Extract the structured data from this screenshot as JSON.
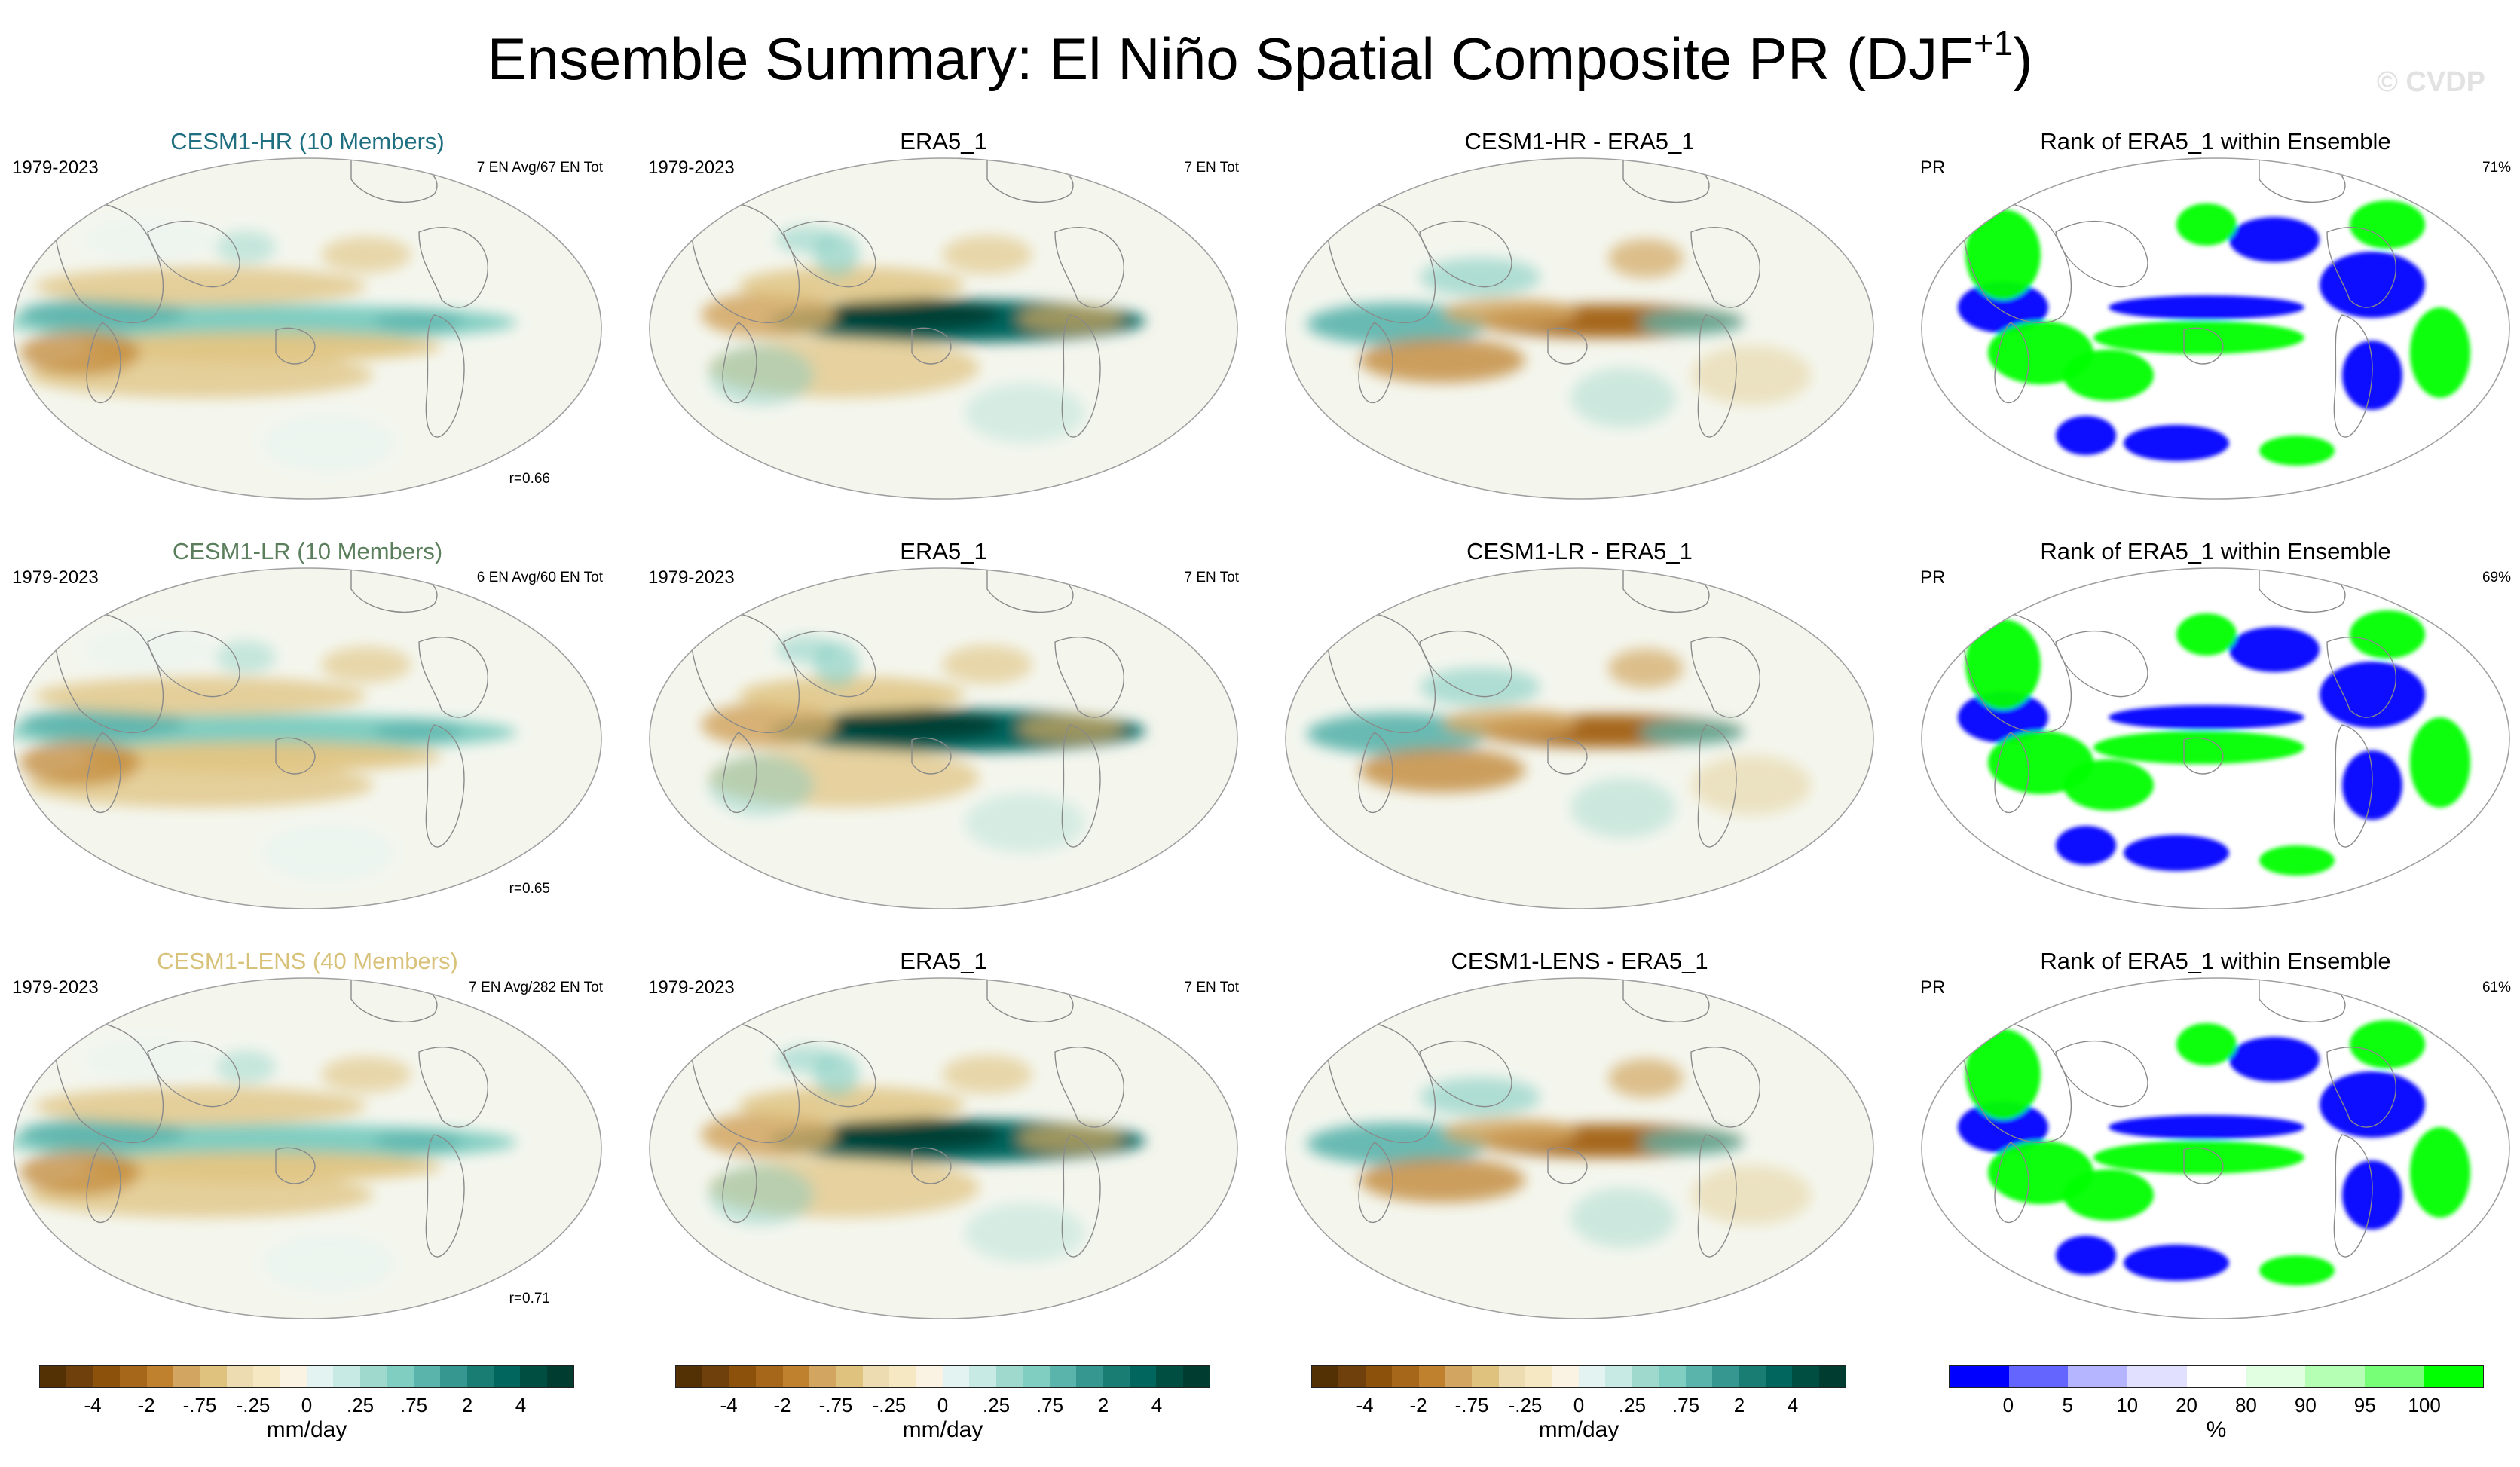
{
  "title": {
    "main": "Ensemble Summary: El Niño Spatial Composite PR (DJF",
    "superscript": "+1",
    "close": ")"
  },
  "watermark": "© CVDP",
  "palette": {
    "brown_green": [
      "#543005",
      "#6f400b",
      "#8c510a",
      "#a6671a",
      "#bf812d",
      "#d2a660",
      "#dfc27d",
      "#eddcb1",
      "#f6e8c3",
      "#faf3e3",
      "#e2f3f1",
      "#c7eae5",
      "#9fd9ce",
      "#80cdc1",
      "#5ab4ac",
      "#35978f",
      "#1a7d74",
      "#01665e",
      "#004d42",
      "#003c30"
    ],
    "rank": [
      "#0000ff",
      "#6464ff",
      "#b4b4ff",
      "#e1e1ff",
      "#ffffff",
      "#e1ffe1",
      "#b4ffb4",
      "#78ff78",
      "#00ff00"
    ]
  },
  "rows": [
    {
      "panels": [
        {
          "title": "CESM1-HR (10 Members)",
          "title_color": "#1f6f80",
          "left": "1979-2023",
          "right": "7 EN Avg/67 EN Tot",
          "corr": "r=0.66",
          "kind": "model"
        },
        {
          "title": "ERA5_1",
          "title_color": "#000000",
          "left": "1979-2023",
          "right": "7 EN Tot",
          "kind": "obs"
        },
        {
          "title": "CESM1-HR - ERA5_1",
          "title_color": "#000000",
          "kind": "diff"
        },
        {
          "title": "Rank of ERA5_1 within Ensemble",
          "title_color": "#000000",
          "left": "PR",
          "right": "71%",
          "kind": "rank"
        }
      ]
    },
    {
      "panels": [
        {
          "title": "CESM1-LR (10 Members)",
          "title_color": "#5b7f5c",
          "left": "1979-2023",
          "right": "6 EN Avg/60 EN Tot",
          "corr": "r=0.65",
          "kind": "model"
        },
        {
          "title": "ERA5_1",
          "title_color": "#000000",
          "left": "1979-2023",
          "right": "7 EN Tot",
          "kind": "obs"
        },
        {
          "title": "CESM1-LR - ERA5_1",
          "title_color": "#000000",
          "kind": "diff"
        },
        {
          "title": "Rank of ERA5_1 within Ensemble",
          "title_color": "#000000",
          "left": "PR",
          "right": "69%",
          "kind": "rank"
        }
      ]
    },
    {
      "panels": [
        {
          "title": "CESM1-LENS (40 Members)",
          "title_color": "#d8c27a",
          "left": "1979-2023",
          "right": "7 EN Avg/282 EN Tot",
          "corr": "r=0.71",
          "kind": "model"
        },
        {
          "title": "ERA5_1",
          "title_color": "#000000",
          "left": "1979-2023",
          "right": "7 EN Tot",
          "kind": "obs"
        },
        {
          "title": "CESM1-LENS - ERA5_1",
          "title_color": "#000000",
          "kind": "diff"
        },
        {
          "title": "Rank of ERA5_1 within Ensemble",
          "title_color": "#000000",
          "left": "PR",
          "right": "61%",
          "kind": "rank"
        }
      ]
    }
  ],
  "colorbars": [
    {
      "ticks": [
        "-4",
        "-2",
        "-.75",
        "-.25",
        "0",
        ".25",
        ".75",
        "2",
        "4"
      ],
      "unit": "mm/day",
      "palette": "brown_green"
    },
    {
      "ticks": [
        "-4",
        "-2",
        "-.75",
        "-.25",
        "0",
        ".25",
        ".75",
        "2",
        "4"
      ],
      "unit": "mm/day",
      "palette": "brown_green"
    },
    {
      "ticks": [
        "-4",
        "-2",
        "-.75",
        "-.25",
        "0",
        ".25",
        ".75",
        "2",
        "4"
      ],
      "unit": "mm/day",
      "palette": "brown_green"
    },
    {
      "ticks": [
        "0",
        "5",
        "10",
        "20",
        "80",
        "90",
        "95",
        "100"
      ],
      "unit": "%",
      "palette": "rank"
    }
  ]
}
